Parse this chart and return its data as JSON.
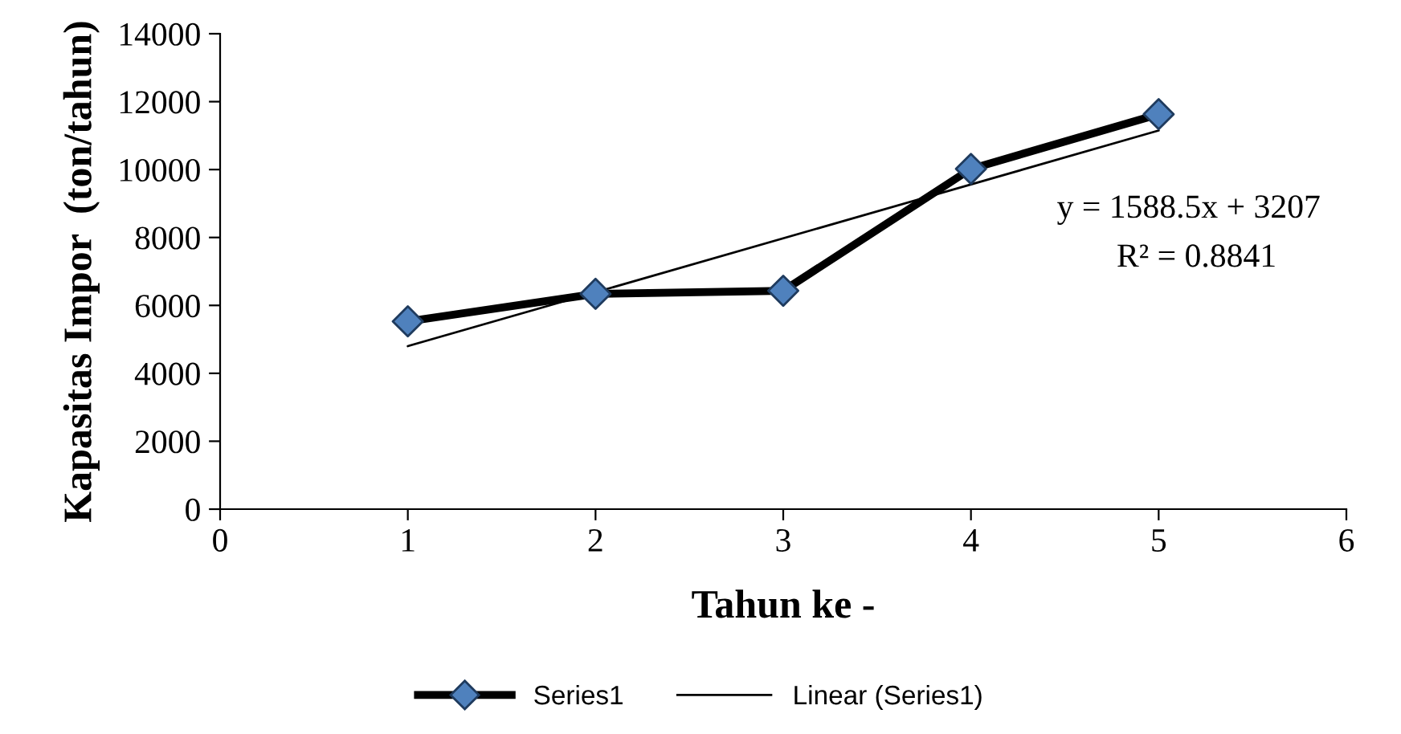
{
  "chart_data": {
    "type": "line",
    "xlabel": "Tahun ke -",
    "ylabel": "Kapasitas Impor  (ton/tahun)",
    "x": [
      1,
      2,
      3,
      4,
      5
    ],
    "series": [
      {
        "name": "Series1",
        "color": "#000000",
        "colors": [
          "#4f81bd",
          "#4f81bd",
          "#4f81bd",
          "#4f81bd",
          "#4f81bd"
        ],
        "marker": "diamond",
        "line_style": "solid",
        "values": [
          5530,
          6340,
          6430,
          10020,
          11630
        ]
      },
      {
        "name": "Linear (Series1)",
        "color": "#000000",
        "marker": "none",
        "line_style": "solid",
        "x": [
          1,
          5
        ],
        "values": [
          4800,
          11150
        ]
      }
    ],
    "annotations": [
      "y = 1588.5x + 3207",
      "R² = 0.8841"
    ],
    "xlim": [
      0,
      6
    ],
    "xticks": [
      0,
      1,
      2,
      3,
      4,
      5,
      6
    ],
    "ylim": [
      0,
      14000
    ],
    "yticks": [
      0,
      2000,
      4000,
      6000,
      8000,
      10000,
      12000,
      14000
    ],
    "grid": false,
    "legend": "bottom"
  }
}
